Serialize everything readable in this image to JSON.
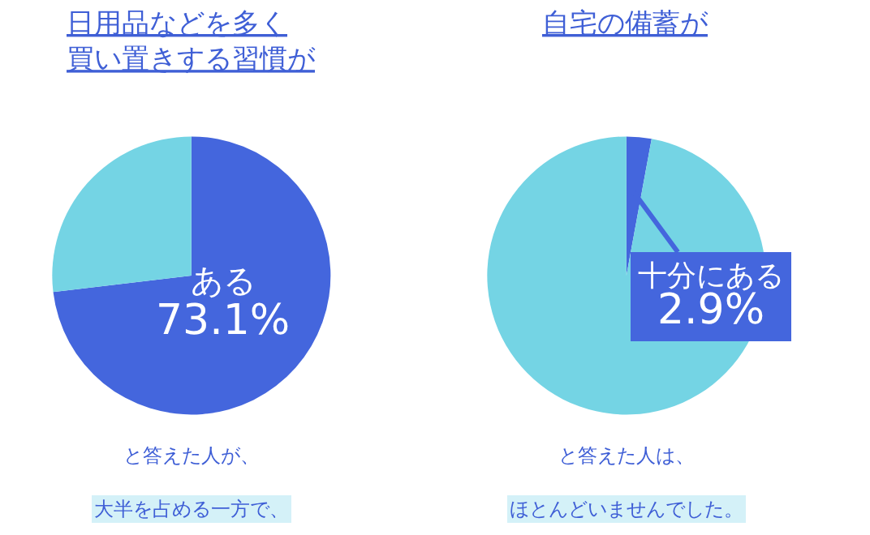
{
  "chart_data": [
    {
      "type": "pie",
      "title": "日用品などを多く買い置きする習慣が",
      "categories": [
        "ある",
        null
      ],
      "values": [
        73.1,
        26.9
      ],
      "value_labels": [
        "73.1%",
        null
      ],
      "colors": [
        "#4466dd",
        "#74d4e4"
      ],
      "annotations": [
        "と答えた人が、",
        "大半を占める一方で、"
      ]
    },
    {
      "type": "pie",
      "title": "自宅の備蓄が",
      "categories": [
        "十分にある",
        null
      ],
      "values": [
        2.9,
        97.1
      ],
      "value_labels": [
        "2.9%",
        null
      ],
      "colors": [
        "#4466dd",
        "#74d4e4"
      ],
      "annotations": [
        "と答えた人は、",
        "ほとんどいませんでした。"
      ]
    }
  ]
}
